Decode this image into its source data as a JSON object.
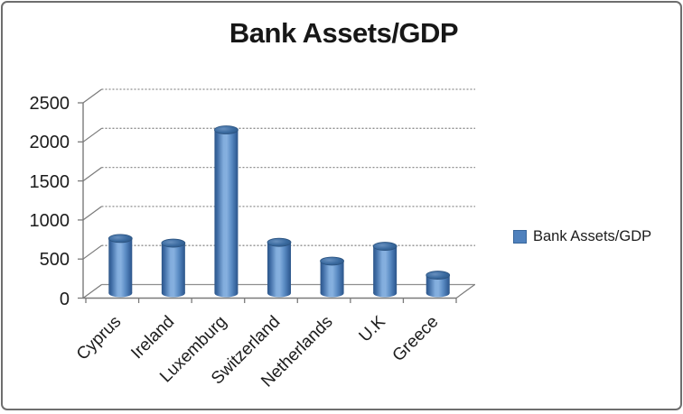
{
  "chart_data": {
    "type": "bar",
    "style": "3d-cylinder",
    "title": "Bank Assets/GDP",
    "categories": [
      "Cyprus",
      "Ireland",
      "Luxemburg",
      "Switzerland",
      "Netherlands",
      "U.K",
      "Greece"
    ],
    "series": [
      {
        "name": "Bank Assets/GDP",
        "values": [
          700,
          640,
          2090,
          650,
          410,
          600,
          230
        ]
      }
    ],
    "xlabel": "",
    "ylabel": "",
    "ylim": [
      0,
      2500
    ],
    "ytick_step": 500,
    "ytick_labels": [
      "2500",
      "2000",
      "1500",
      "1000",
      "500",
      "0"
    ],
    "grid": true,
    "legend_position": "right",
    "colors": {
      "bar_main": "#4f81bd",
      "bar_light": "#82addd",
      "bar_dark": "#2d5689",
      "cap_dark": "#3a6a9f",
      "cap_rim": "#2b5380",
      "gridline": "#8e8e8e",
      "axis": "#7a7a7a",
      "text": "#1c1c1c",
      "frame_border": "#6e6e6e"
    }
  }
}
